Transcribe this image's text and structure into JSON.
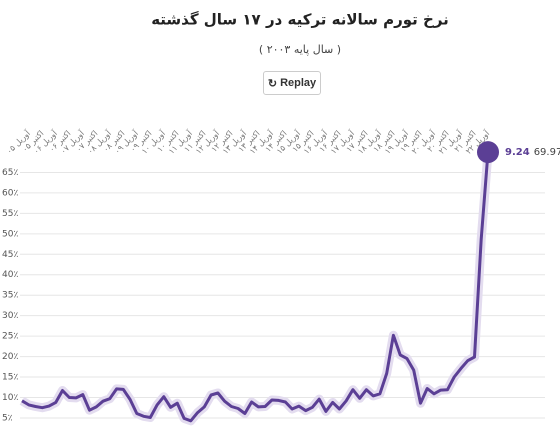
{
  "chart_data": {
    "type": "line",
    "title": "نرخ تورم سالانه ترکیه در ۱۷ سال گذشته",
    "subtitle": "( سال پایه ۲۰۰۳ )",
    "button": "Replay",
    "categories": [
      null,
      "آوریل ۰۵",
      null,
      "اکتبر ۰۵",
      null,
      "آوریل ۰۶",
      null,
      "اکتبر ۰۶",
      null,
      "آوریل ۰۷",
      null,
      "اکتبر ۰۷",
      null,
      "آوریل ۰۸",
      null,
      "اکتبر ۰۸",
      null,
      "آوریل ۰۹",
      null,
      "اکتبر ۰۹",
      null,
      "آوریل ۱۰",
      null,
      "اکتبر ۱۰",
      null,
      "آوریل ۱۱",
      null,
      "اکتبر ۱۱",
      null,
      "آوریل ۱۲",
      null,
      "اکتبر ۱۲",
      null,
      "آوریل ۱۳",
      null,
      "اکتبر ۱۳",
      null,
      "آوریل ۱۴",
      null,
      "اکتبر ۱۴",
      null,
      "آوریل ۱۵",
      null,
      "اکتبر ۱۵",
      null,
      "آوریل ۱۶",
      null,
      "اکتبر ۱۶",
      null,
      "آوریل ۱۷",
      null,
      "اکتبر ۱۷",
      null,
      "آوریل ۱۸",
      null,
      "اکتبر ۱۸",
      null,
      "آوریل ۱۹",
      null,
      "اکتبر ۱۹",
      null,
      "آوریل ۲۰",
      null,
      "اکتبر ۲۰",
      null,
      "آوریل ۲۱",
      null,
      "اکتبر ۲۱",
      null,
      "آوریل ۲۲"
    ],
    "values": [
      9.2,
      8.2,
      7.8,
      7.5,
      7.9,
      8.8,
      11.7,
      10.0,
      9.9,
      10.7,
      6.9,
      7.7,
      9.1,
      9.7,
      12.1,
      11.99,
      9.5,
      6.1,
      5.4,
      5.1,
      8.2,
      10.2,
      7.6,
      8.6,
      4.9,
      4.3,
      6.3,
      7.7,
      10.6,
      11.1,
      9.1,
      7.8,
      7.3,
      6.1,
      8.9,
      7.7,
      7.8,
      9.4,
      9.3,
      8.9,
      7.2,
      7.9,
      6.8,
      7.6,
      9.6,
      6.6,
      8.8,
      7.2,
      9.2,
      11.9,
      9.8,
      11.9,
      10.4,
      10.9,
      15.9,
      25.2,
      20.4,
      19.5,
      16.7,
      8.6,
      12.2,
      10.9,
      11.8,
      11.9,
      15.0,
      17.1,
      19.0,
      19.9,
      48.7,
      69.97
    ],
    "end_label": "9.24",
    "color": "#5b3f95",
    "ylim": [
      4.5,
      70
    ],
    "yticks": [
      {
        "value": 5,
        "label": "5٪"
      },
      {
        "value": 10,
        "label": "10٪"
      },
      {
        "value": 15,
        "label": "15٪"
      },
      {
        "value": 20,
        "label": "20٪"
      },
      {
        "value": 25,
        "label": "25٪"
      },
      {
        "value": 30,
        "label": "30٪"
      },
      {
        "value": 35,
        "label": "35٪"
      },
      {
        "value": 40,
        "label": "40٪"
      },
      {
        "value": 45,
        "label": "45٪"
      },
      {
        "value": 50,
        "label": "50٪"
      },
      {
        "value": 55,
        "label": "55٪"
      },
      {
        "value": 60,
        "label": "60٪"
      },
      {
        "value": 65,
        "label": "65٪"
      }
    ],
    "grid": true
  }
}
